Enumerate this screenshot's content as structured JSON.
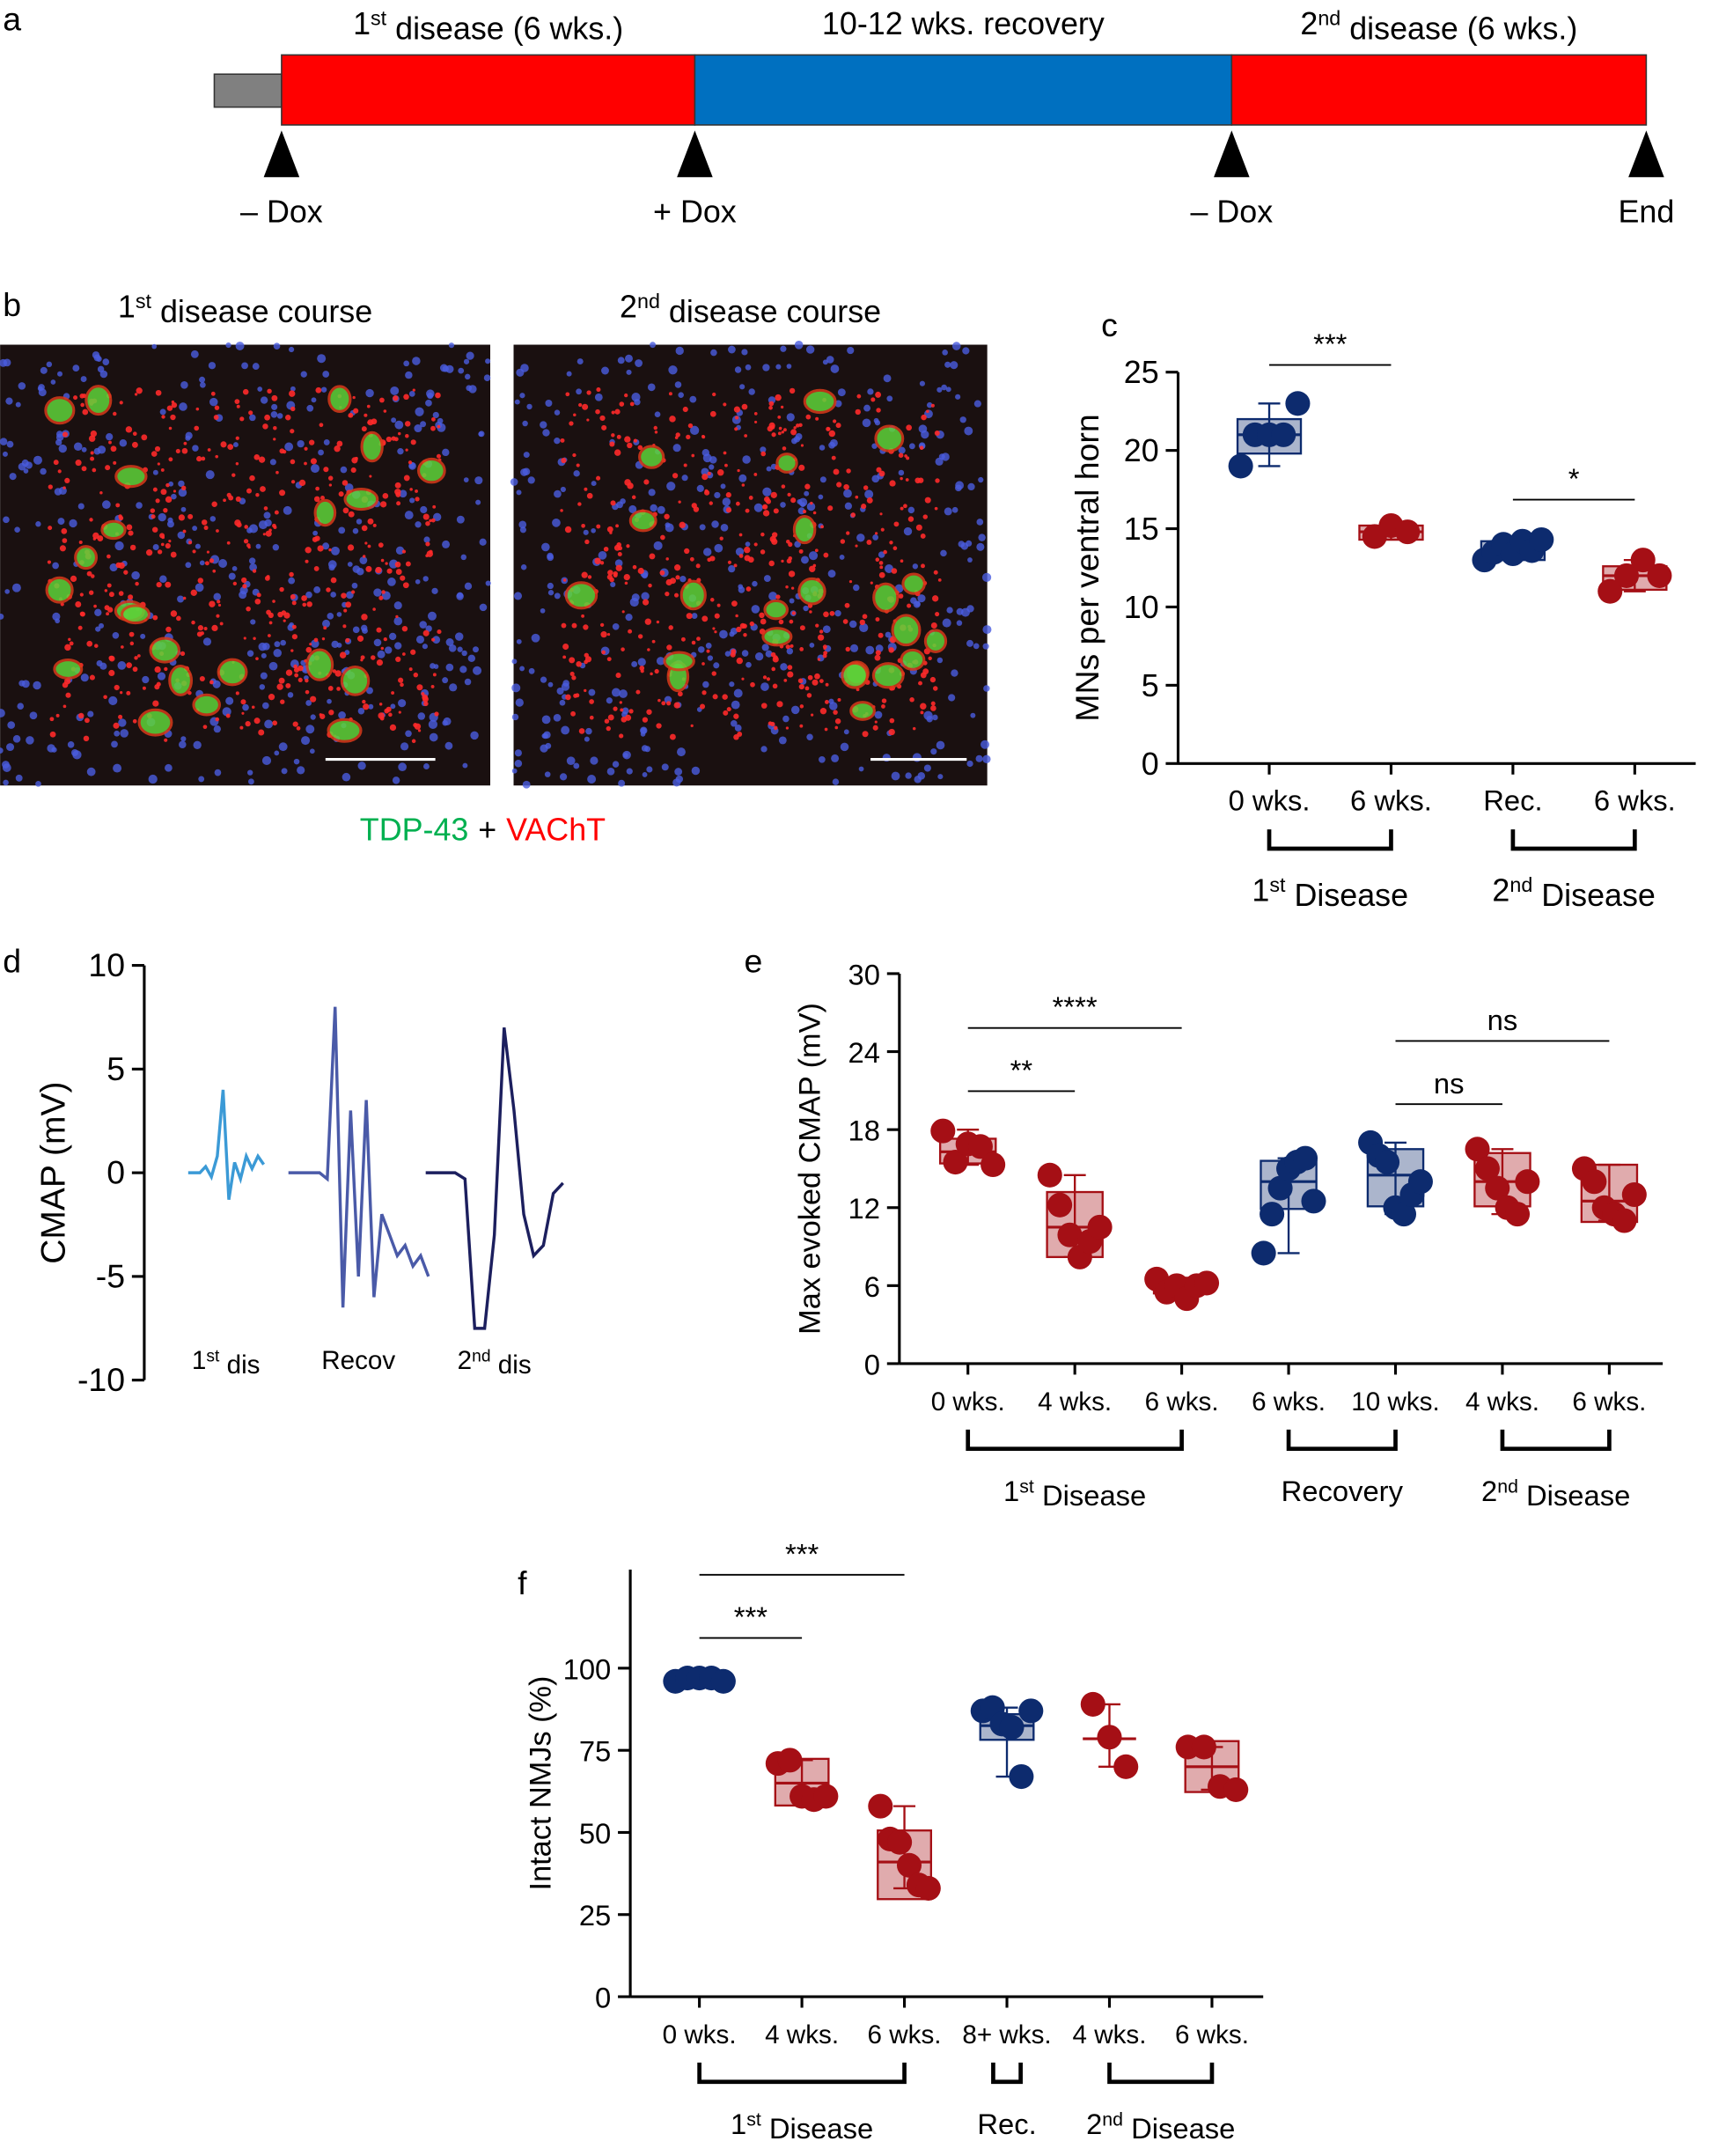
{
  "panel_labels": [
    "a",
    "b",
    "c",
    "d",
    "e",
    "f"
  ],
  "timeline": {
    "lead_color": "#808080",
    "segments": [
      {
        "label": "1st disease (6 wks.)",
        "color": "#ff0000"
      },
      {
        "label": "10-12 wks. recovery",
        "color": "#0070c0"
      },
      {
        "label": "2nd disease (6 wks.)",
        "color": "#ff0000"
      }
    ],
    "markers": [
      "– Dox",
      "+ Dox",
      "– Dox",
      "End"
    ]
  },
  "micrographs": {
    "titles": [
      "1st disease course",
      "2nd disease course"
    ],
    "stain_legend": [
      {
        "label": "TDP-43",
        "color": "#00b050"
      },
      {
        "label": "+",
        "color": "#000000"
      },
      {
        "label": "VAChT",
        "color": "#ff0000"
      }
    ]
  },
  "chart_data": [
    {
      "type": "box",
      "y_label": "MNs per ventral horn",
      "ylim": [
        0,
        25
      ],
      "yticks": [
        0,
        5,
        10,
        15,
        20,
        25
      ],
      "categories": [
        "0 wks.",
        "6 wks.",
        "Rec.",
        "6 wks."
      ],
      "groups": [
        {
          "color": "#0d2b6e",
          "points": [
            19,
            21,
            21,
            21,
            23
          ],
          "box": [
            19.8,
            21,
            22
          ],
          "whiskers": [
            19,
            23
          ]
        },
        {
          "color": "#a50f15",
          "points": [
            14.5,
            15.2,
            14.8
          ],
          "box": [
            14.3,
            14.8,
            15.2
          ],
          "whiskers": [
            14.3,
            15.3
          ]
        },
        {
          "color": "#0d2b6e",
          "points": [
            13,
            13.5,
            14,
            13.4,
            14.2,
            13.6,
            14.3
          ],
          "box": [
            13,
            13.6,
            14.2
          ],
          "whiskers": [
            13,
            14.4
          ]
        },
        {
          "color": "#a50f15",
          "points": [
            11,
            12,
            13,
            12
          ],
          "box": [
            11.1,
            12,
            12.6
          ],
          "whiskers": [
            11,
            13
          ]
        }
      ],
      "category_groups": [
        {
          "label": "1st Disease",
          "span": [
            0,
            1
          ]
        },
        {
          "label": "2nd Disease",
          "span": [
            2,
            3
          ]
        }
      ],
      "significance": [
        {
          "between": [
            0,
            1
          ],
          "label": "***"
        },
        {
          "between": [
            2,
            3
          ],
          "label": "*"
        }
      ]
    },
    {
      "type": "trace",
      "y_label": "CMAP (mV)",
      "ylim": [
        -10,
        10
      ],
      "yticks": [
        -10,
        -5,
        0,
        5,
        10
      ],
      "traces": [
        {
          "label": "1st dis",
          "color": "#3b9ad6",
          "values": [
            0,
            0,
            0,
            0.3,
            -0.2,
            0.8,
            4,
            -1.3,
            0.5,
            -0.3,
            0.8,
            0.2,
            0.8,
            0.4
          ]
        },
        {
          "label": "Recov",
          "color": "#4a5aa8",
          "values": [
            0,
            0,
            0,
            0,
            0,
            -0.3,
            8,
            -6.5,
            3,
            -5,
            3.5,
            -6,
            -2,
            -3,
            -4,
            -3.5,
            -4.5,
            -4,
            -5
          ]
        },
        {
          "label": "2nd dis",
          "color": "#1c1f5e",
          "values": [
            0,
            0,
            0,
            0,
            -0.3,
            -7.5,
            -7.5,
            -3,
            7,
            3,
            -2,
            -4,
            -3.5,
            -1,
            -0.5
          ]
        }
      ]
    },
    {
      "type": "box",
      "y_label": "Max evoked CMAP (mV)",
      "ylim": [
        0,
        30
      ],
      "yticks": [
        0,
        6,
        12,
        18,
        24,
        30
      ],
      "categories": [
        "0 wks.",
        "4 wks.",
        "6 wks.",
        "6 wks.",
        "10 wks.",
        "4 wks.",
        "6 wks."
      ],
      "groups": [
        {
          "color": "#a50f15",
          "points": [
            17.9,
            15.5,
            16.9,
            16.7,
            15.3
          ],
          "box": [
            15.4,
            16.3,
            17.3
          ],
          "whiskers": [
            15.3,
            18
          ]
        },
        {
          "color": "#a50f15",
          "points": [
            14.5,
            12.2,
            9.9,
            8.2,
            9.4,
            10.5
          ],
          "box": [
            8.2,
            10.5,
            13.2
          ],
          "whiskers": [
            8.2,
            14.5
          ]
        },
        {
          "color": "#a50f15",
          "points": [
            6.5,
            5.5,
            6,
            5,
            6,
            6.2
          ],
          "box": [
            5.4,
            6,
            6.6
          ],
          "whiskers": [
            5,
            6.6
          ]
        },
        {
          "color": "#0d2b6e",
          "points": [
            8.5,
            11.5,
            13.5,
            15,
            15.5,
            15.8,
            12.5
          ],
          "box": [
            11.9,
            14,
            15.6
          ],
          "whiskers": [
            8.5,
            15.8
          ]
        },
        {
          "color": "#0d2b6e",
          "points": [
            17,
            16,
            15.5,
            12,
            11.5,
            13,
            14
          ],
          "box": [
            12.1,
            14.5,
            16.5
          ],
          "whiskers": [
            11.5,
            17
          ]
        },
        {
          "color": "#a50f15",
          "points": [
            16.5,
            15,
            13.5,
            12,
            11.5,
            14
          ],
          "box": [
            12.1,
            14,
            16.2
          ],
          "whiskers": [
            11.5,
            16.5
          ]
        },
        {
          "color": "#a50f15",
          "points": [
            15,
            14,
            12,
            11.5,
            11,
            13
          ],
          "box": [
            10.9,
            12.5,
            15.3
          ],
          "whiskers": [
            11,
            15.3
          ]
        }
      ],
      "category_groups": [
        {
          "label": "1st Disease",
          "span": [
            0,
            2
          ]
        },
        {
          "label": "Recovery",
          "span": [
            3,
            4
          ]
        },
        {
          "label": "2nd Disease",
          "span": [
            5,
            6
          ]
        }
      ],
      "significance": [
        {
          "between": [
            0,
            1
          ],
          "label": "**"
        },
        {
          "between": [
            0,
            2
          ],
          "label": "****"
        },
        {
          "between": [
            4,
            5
          ],
          "label": "ns"
        },
        {
          "between": [
            4,
            6
          ],
          "label": "ns"
        }
      ]
    },
    {
      "type": "box",
      "y_label": "Intact NMJs (%)",
      "ylim": [
        0,
        130
      ],
      "yticks": [
        0,
        25,
        50,
        75,
        100
      ],
      "categories": [
        "0 wks.",
        "4 wks.",
        "6 wks.",
        "8+ wks.",
        "4 wks.",
        "6 wks."
      ],
      "groups": [
        {
          "color": "#0d2b6e",
          "points": [
            96,
            97,
            97,
            97,
            96
          ],
          "box": [
            95.5,
            96.5,
            97.5
          ],
          "whiskers": [
            96,
            97.5
          ]
        },
        {
          "color": "#a50f15",
          "points": [
            71,
            72,
            61,
            60,
            61
          ],
          "box": [
            58.2,
            65,
            72.4
          ],
          "whiskers": [
            60,
            72
          ]
        },
        {
          "color": "#a50f15",
          "points": [
            58,
            48,
            47,
            40,
            34,
            33
          ],
          "box": [
            29.7,
            41,
            50.6
          ],
          "whiskers": [
            33,
            58
          ]
        },
        {
          "color": "#0d2b6e",
          "points": [
            87,
            88,
            83,
            82,
            67,
            87
          ],
          "box": [
            78.2,
            82.5,
            86
          ],
          "whiskers": [
            67,
            88
          ]
        },
        {
          "color": "#a50f15",
          "points": [
            89,
            79,
            70
          ],
          "box": [
            78.5,
            78.5,
            78.5
          ],
          "whiskers": [
            70,
            89
          ]
        },
        {
          "color": "#a50f15",
          "points": [
            76,
            76,
            64,
            63
          ],
          "box": [
            62.3,
            70,
            77.8
          ],
          "whiskers": [
            63,
            76
          ]
        }
      ],
      "category_groups": [
        {
          "label": "1st Disease",
          "span": [
            0,
            2
          ]
        },
        {
          "label": "Rec.",
          "span": [
            3,
            3
          ]
        },
        {
          "label": "2nd Disease",
          "span": [
            4,
            5
          ]
        }
      ],
      "significance": [
        {
          "between": [
            0,
            1
          ],
          "label": "***"
        },
        {
          "between": [
            0,
            2
          ],
          "label": "***"
        }
      ]
    }
  ]
}
